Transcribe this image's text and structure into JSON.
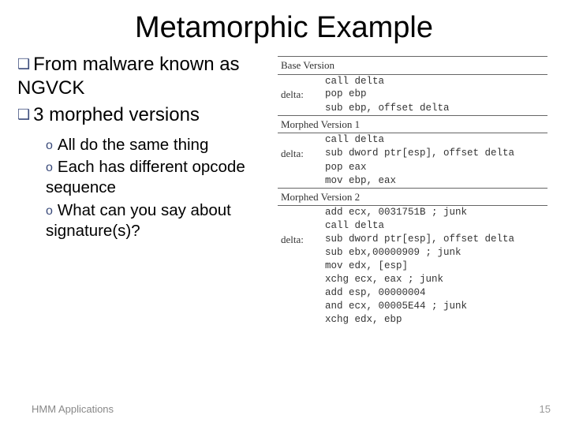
{
  "title": "Metamorphic Example",
  "bullets": {
    "main": [
      "From malware known as NGVCK",
      "3 morphed versions"
    ],
    "sub": [
      "All do the same thing",
      "Each has different opcode sequence",
      "What can you say about signature(s)?"
    ]
  },
  "table": {
    "sections": [
      {
        "header": "Base Version",
        "rows": [
          {
            "label": "",
            "code": "call delta"
          },
          {
            "label": "delta:",
            "code": "pop ebp"
          },
          {
            "label": "",
            "code": "sub ebp, offset delta"
          }
        ]
      },
      {
        "header": "Morphed Version 1",
        "rows": [
          {
            "label": "",
            "code": "call delta"
          },
          {
            "label": "delta:",
            "code": "sub dword ptr[esp], offset delta"
          },
          {
            "label": "",
            "code": "pop eax"
          },
          {
            "label": "",
            "code": "mov ebp, eax"
          }
        ]
      },
      {
        "header": "Morphed Version 2",
        "rows": [
          {
            "label": "",
            "code": "add ecx, 0031751B ; junk"
          },
          {
            "label": "",
            "code": "call delta"
          },
          {
            "label": "delta:",
            "code": "sub dword ptr[esp], offset delta"
          },
          {
            "label": "",
            "code": "sub ebx,00000909 ; junk"
          },
          {
            "label": "",
            "code": "mov edx, [esp]"
          },
          {
            "label": "",
            "code": "xchg ecx, eax ; junk"
          },
          {
            "label": "",
            "code": "add esp, 00000004"
          },
          {
            "label": "",
            "code": "and ecx, 00005E44 ; junk"
          },
          {
            "label": "",
            "code": "xchg edx, ebp"
          }
        ]
      }
    ]
  },
  "footer": "HMM Applications",
  "pagenum": "15",
  "colors": {
    "bullet_glyph": "#3a4a7a",
    "text": "#000000",
    "rule": "#666666",
    "footer": "#888888"
  }
}
